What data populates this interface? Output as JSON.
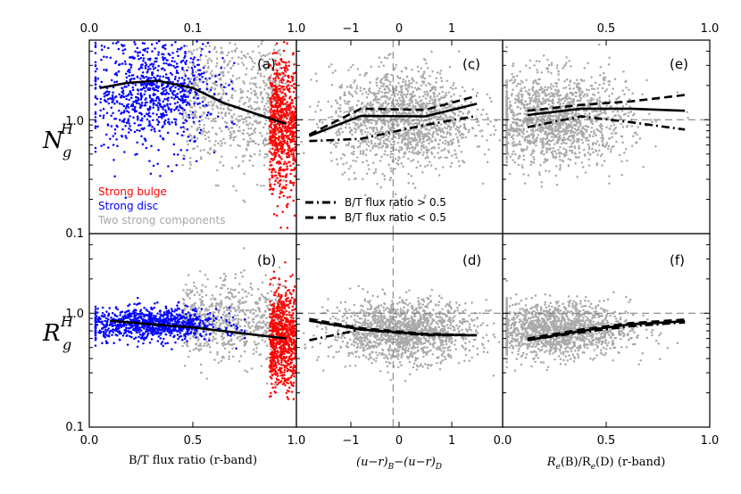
{
  "colors": {
    "bulge": "#ff0000",
    "disc": "#0000ff",
    "two": "#a9a9a9",
    "line": "#000000",
    "guide": "#777777"
  },
  "chart_data": [
    {
      "id": "a",
      "type": "scatter",
      "panel_label": "(a)",
      "xlim": [
        0,
        1
      ],
      "ylim": [
        0.1,
        5
      ],
      "yscale": "log",
      "top_ticks": [
        "0.0",
        "0.1",
        "1.0"
      ],
      "y_ticks": [
        "0.1",
        "1.0"
      ],
      "ylabel_main": "N",
      "ylabel_sub": "g",
      "ylabel_sup": "H",
      "categories": [
        {
          "name": "Strong bulge",
          "color": "#ff0000"
        },
        {
          "name": "Strong disc",
          "color": "#0000ff"
        },
        {
          "name": "Two strong components",
          "color": "#a9a9a9"
        }
      ],
      "median": {
        "x": [
          0.05,
          0.18,
          0.33,
          0.5,
          0.65,
          0.95
        ],
        "y": [
          1.9,
          2.1,
          2.2,
          1.9,
          1.4,
          0.92
        ]
      }
    },
    {
      "id": "b",
      "type": "scatter",
      "panel_label": "(b)",
      "xlim": [
        0,
        1
      ],
      "ylim": [
        0.1,
        5
      ],
      "yscale": "log",
      "x_ticks": [
        "0.0",
        "0.5",
        "1.0"
      ],
      "y_ticks": [
        "0.1",
        "1.0"
      ],
      "xlabel": "B/T flux ratio (r-band)",
      "ylabel_main": "R",
      "ylabel_sub": "g",
      "ylabel_sup": "H",
      "median": {
        "x": [
          0.1,
          0.3,
          0.5,
          0.7,
          0.95
        ],
        "y": [
          0.86,
          0.8,
          0.75,
          0.68,
          0.6
        ]
      }
    },
    {
      "id": "c",
      "type": "scatter",
      "panel_label": "(c)",
      "xlim": [
        -1.5,
        1.7
      ],
      "ylim": [
        0.1,
        5
      ],
      "yscale": "log",
      "top_ticks": [
        "−1",
        "0",
        "1"
      ],
      "median": {
        "x": [
          -1.3,
          -0.5,
          0.5,
          1.3
        ],
        "y": [
          0.72,
          1.08,
          1.07,
          1.38
        ]
      },
      "btgt": {
        "x": [
          -1.3,
          -0.5,
          0.5,
          1.3
        ],
        "y": [
          0.65,
          0.68,
          0.9,
          1.08
        ]
      },
      "btlt": {
        "x": [
          -1.3,
          -0.5,
          0.5,
          1.3
        ],
        "y": [
          0.74,
          1.25,
          1.22,
          1.62
        ]
      },
      "legend": [
        {
          "style": "dashdot",
          "label": "B/T flux ratio > 0.5"
        },
        {
          "style": "dashed",
          "label": "B/T flux ratio < 0.5"
        }
      ]
    },
    {
      "id": "d",
      "type": "scatter",
      "panel_label": "(d)",
      "xlim": [
        -1.5,
        1.7
      ],
      "ylim": [
        0.1,
        5
      ],
      "yscale": "log",
      "x_ticks": [
        "−1",
        "0",
        "1"
      ],
      "xlabel_main": "(u−r)",
      "xlabel_sub1": "B",
      "xlabel_mid": "−(u−r)",
      "xlabel_sub2": "D",
      "median": {
        "x": [
          -1.3,
          -0.5,
          0.5,
          1.3
        ],
        "y": [
          0.86,
          0.72,
          0.65,
          0.64
        ]
      },
      "btgt": {
        "x": [
          -1.3,
          -0.5,
          0.5,
          1.3
        ],
        "y": [
          0.58,
          0.72,
          0.64,
          0.64
        ]
      },
      "btlt": {
        "x": [
          -1.3,
          -0.5,
          0.5,
          1.3
        ],
        "y": [
          0.89,
          0.74,
          0.66,
          0.64
        ]
      }
    },
    {
      "id": "e",
      "type": "scatter",
      "panel_label": "(e)",
      "xlim": [
        0,
        1
      ],
      "ylim": [
        0.1,
        5
      ],
      "yscale": "log",
      "top_ticks": [
        "0.5",
        "1.0"
      ],
      "median": {
        "x": [
          0.12,
          0.38,
          0.62,
          0.88
        ],
        "y": [
          1.1,
          1.25,
          1.25,
          1.2
        ]
      },
      "btgt": {
        "x": [
          0.12,
          0.38,
          0.62,
          0.88
        ],
        "y": [
          0.86,
          1.07,
          0.95,
          0.82
        ]
      },
      "btlt": {
        "x": [
          0.12,
          0.38,
          0.62,
          0.88
        ],
        "y": [
          1.2,
          1.35,
          1.45,
          1.65
        ]
      }
    },
    {
      "id": "f",
      "type": "scatter",
      "panel_label": "(f)",
      "xlim": [
        0,
        1
      ],
      "ylim": [
        0.1,
        5
      ],
      "yscale": "log",
      "x_ticks": [
        "0.0",
        "0.5",
        "1.0"
      ],
      "xlabel_main": "R",
      "xlabel_s1": "e",
      "xlabel_p1": "(B)/R",
      "xlabel_s2": "e",
      "xlabel_p2": "(D) (r-band)",
      "median": {
        "x": [
          0.12,
          0.38,
          0.62,
          0.88
        ],
        "y": [
          0.58,
          0.7,
          0.8,
          0.85
        ]
      },
      "btgt": {
        "x": [
          0.12,
          0.38,
          0.62,
          0.88
        ],
        "y": [
          0.58,
          0.68,
          0.77,
          0.83
        ]
      },
      "btlt": {
        "x": [
          0.12,
          0.38,
          0.62,
          0.88
        ],
        "y": [
          0.6,
          0.72,
          0.82,
          0.88
        ]
      }
    }
  ]
}
